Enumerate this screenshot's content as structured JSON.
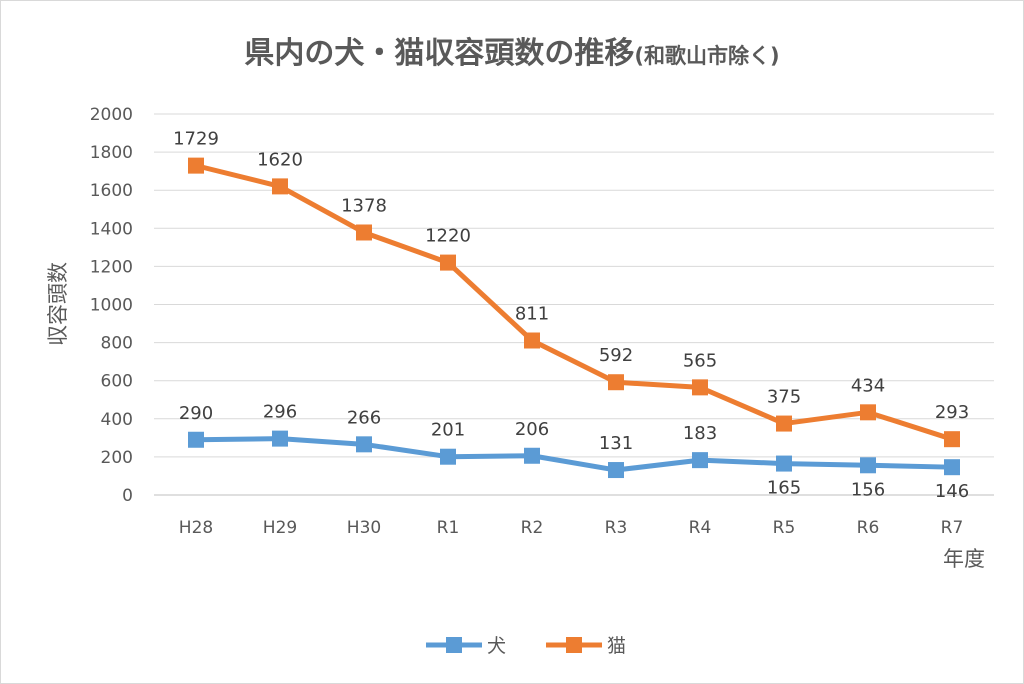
{
  "chart_data": {
    "type": "line",
    "title": "県内の犬・猫収容頭数の推移",
    "subtitle": "(和歌山市除く)",
    "xlabel": "年度",
    "ylabel": "収容頭数",
    "categories": [
      "H28",
      "H29",
      "H30",
      "R1",
      "R2",
      "R3",
      "R4",
      "R5",
      "R6",
      "R7"
    ],
    "ylim": [
      0,
      2000
    ],
    "yticks": [
      0,
      200,
      400,
      600,
      800,
      1000,
      1200,
      1400,
      1600,
      1800,
      2000
    ],
    "grid": true,
    "legend_position": "bottom",
    "series": [
      {
        "name": "犬",
        "color": "#5B9BD5",
        "values": [
          290,
          296,
          266,
          201,
          206,
          131,
          183,
          165,
          156,
          146
        ],
        "label_positions": [
          "above",
          "above",
          "above",
          "above",
          "above",
          "above",
          "above",
          "below",
          "below",
          "below"
        ]
      },
      {
        "name": "猫",
        "color": "#ED7D31",
        "values": [
          1729,
          1620,
          1378,
          1220,
          811,
          592,
          565,
          375,
          434,
          293
        ],
        "label_positions": [
          "above",
          "above",
          "above",
          "above",
          "above",
          "above",
          "above",
          "above",
          "above",
          "above"
        ]
      }
    ]
  }
}
